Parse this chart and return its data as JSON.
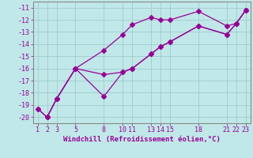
{
  "bg_color": "#c0e8e8",
  "grid_color": "#a0cccc",
  "line_color": "#990099",
  "xlabel": "Windchill (Refroidissement éolien,°C)",
  "xlim": [
    0.5,
    23.5
  ],
  "ylim": [
    -20.5,
    -10.5
  ],
  "yticks": [
    -20,
    -19,
    -18,
    -17,
    -16,
    -15,
    -14,
    -13,
    -12,
    -11
  ],
  "xtick_positions": [
    1,
    2,
    3,
    5,
    8,
    10,
    11,
    13,
    14,
    15,
    18,
    21,
    22,
    23
  ],
  "xtick_labels": [
    "1",
    "2",
    "3",
    "5",
    "8",
    "10",
    "11",
    "13",
    "14",
    "15",
    "18",
    "21",
    "22",
    "23"
  ],
  "line1_x": [
    1,
    2,
    3,
    5,
    8,
    10,
    11,
    13,
    14,
    15,
    18,
    21,
    22,
    23
  ],
  "line1_y": [
    -19.3,
    -20.0,
    -18.5,
    -16.0,
    -14.5,
    -13.2,
    -12.4,
    -11.8,
    -12.0,
    -12.0,
    -11.3,
    -12.5,
    -12.3,
    -11.2
  ],
  "line2_x": [
    1,
    2,
    3,
    5,
    8,
    10,
    11,
    13,
    14,
    15,
    18,
    21,
    22,
    23
  ],
  "line2_y": [
    -19.3,
    -20.0,
    -18.5,
    -16.0,
    -16.5,
    -16.3,
    -16.0,
    -14.8,
    -14.2,
    -13.8,
    -12.5,
    -13.2,
    -12.3,
    -11.2
  ],
  "line3_x": [
    2,
    3,
    5,
    8,
    10,
    11,
    13,
    14,
    15,
    18,
    21,
    22,
    23
  ],
  "line3_y": [
    -20.0,
    -18.5,
    -16.0,
    -18.3,
    -16.3,
    -16.0,
    -14.8,
    -14.2,
    -13.8,
    -12.5,
    -13.2,
    -12.3,
    -11.2
  ]
}
